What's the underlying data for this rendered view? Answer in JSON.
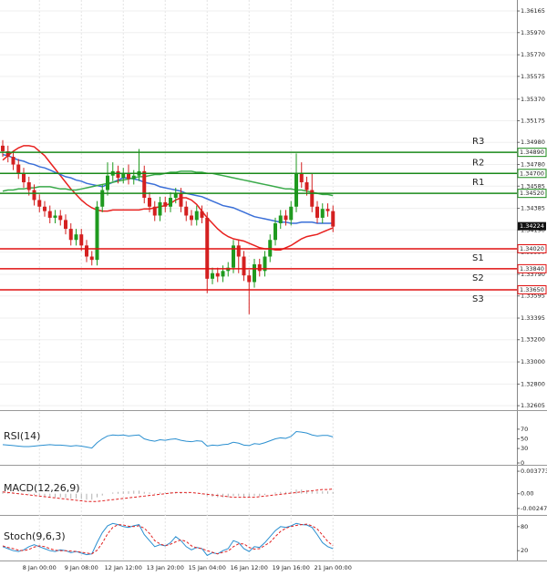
{
  "chart_data": {
    "type": "candlestick",
    "categories": [
      null,
      null,
      null,
      null,
      null,
      null,
      null,
      "8 Jan 00:00",
      null,
      null,
      null,
      null,
      null,
      null,
      null,
      "9 Jan 08:00",
      null,
      null,
      null,
      null,
      null,
      null,
      null,
      "12 Jan 12:00",
      null,
      null,
      null,
      null,
      null,
      null,
      null,
      "13 Jan 20:00",
      null,
      null,
      null,
      null,
      null,
      null,
      null,
      "15 Jan 04:00",
      null,
      null,
      null,
      null,
      null,
      null,
      null,
      "16 Jan 12:00",
      null,
      null,
      null,
      null,
      null,
      null,
      null,
      "19 Jan 16:00",
      null,
      null,
      null,
      null,
      null,
      null,
      null,
      "21 Jan 00:00"
    ],
    "open": [
      1.3495,
      1.349,
      1.3485,
      1.3478,
      1.347,
      1.3462,
      1.3455,
      1.3446,
      1.344,
      1.3436,
      1.343,
      1.3432,
      1.3428,
      1.342,
      1.341,
      1.3415,
      1.3405,
      1.3395,
      1.3392,
      1.344,
      1.3455,
      1.3468,
      1.3472,
      1.3466,
      1.347,
      1.3465,
      1.3468,
      1.3472,
      1.3448,
      1.344,
      1.3432,
      1.3444,
      1.344,
      1.3448,
      1.3452,
      1.344,
      1.3432,
      1.3428,
      1.3436,
      1.343,
      1.3375,
      1.338,
      1.3377,
      1.3382,
      1.3385,
      1.3405,
      1.3395,
      1.3378,
      1.3372,
      1.3388,
      1.3382,
      1.3395,
      1.341,
      1.3425,
      1.3432,
      1.3428,
      1.344,
      1.347,
      1.3462,
      1.3455,
      1.344,
      1.343,
      1.3438,
      1.3436
    ],
    "high": [
      1.35,
      1.3495,
      1.349,
      1.3483,
      1.3475,
      1.3467,
      1.346,
      1.3451,
      1.3445,
      1.3441,
      1.3437,
      1.3437,
      1.3433,
      1.3425,
      1.342,
      1.342,
      1.341,
      1.34,
      1.3445,
      1.346,
      1.348,
      1.348,
      1.3477,
      1.3475,
      1.3478,
      1.3473,
      1.3492,
      1.3477,
      1.3453,
      1.3445,
      1.3449,
      1.3449,
      1.3453,
      1.3457,
      1.3457,
      1.3445,
      1.3437,
      1.3441,
      1.3441,
      1.3435,
      1.3385,
      1.3385,
      1.3387,
      1.339,
      1.341,
      1.341,
      1.34,
      1.3383,
      1.3393,
      1.3393,
      1.34,
      1.3415,
      1.343,
      1.3437,
      1.3437,
      1.3445,
      1.3488,
      1.348,
      1.3467,
      1.347,
      1.3445,
      1.3443,
      1.3443,
      1.3441
    ],
    "low": [
      1.3485,
      1.348,
      1.3473,
      1.3465,
      1.3457,
      1.345,
      1.3441,
      1.3435,
      1.3431,
      1.3425,
      1.3425,
      1.3423,
      1.3415,
      1.3405,
      1.3405,
      1.34,
      1.339,
      1.3387,
      1.3387,
      1.3435,
      1.345,
      1.3463,
      1.3461,
      1.3461,
      1.346,
      1.346,
      1.3463,
      1.3443,
      1.3435,
      1.3427,
      1.3427,
      1.3435,
      1.3435,
      1.3443,
      1.3435,
      1.3427,
      1.3423,
      1.3423,
      1.3425,
      1.3362,
      1.337,
      1.3372,
      1.3372,
      1.3377,
      1.338,
      1.338,
      1.3373,
      1.3343,
      1.3367,
      1.3377,
      1.3377,
      1.339,
      1.3405,
      1.342,
      1.3423,
      1.3423,
      1.3435,
      1.3457,
      1.345,
      1.3435,
      1.3425,
      1.3425,
      1.3431,
      1.3417
    ],
    "close": [
      1.349,
      1.3485,
      1.3478,
      1.347,
      1.3462,
      1.3455,
      1.3446,
      1.344,
      1.3436,
      1.343,
      1.3432,
      1.3428,
      1.342,
      1.341,
      1.3415,
      1.3405,
      1.3395,
      1.3392,
      1.344,
      1.3455,
      1.3468,
      1.3472,
      1.3466,
      1.347,
      1.3465,
      1.3468,
      1.3472,
      1.3448,
      1.344,
      1.3432,
      1.3444,
      1.344,
      1.3448,
      1.3452,
      1.344,
      1.3432,
      1.3428,
      1.3436,
      1.343,
      1.3375,
      1.338,
      1.3377,
      1.3382,
      1.3385,
      1.3405,
      1.3395,
      1.3378,
      1.3372,
      1.3388,
      1.3382,
      1.3395,
      1.341,
      1.3425,
      1.3432,
      1.3428,
      1.344,
      1.347,
      1.3462,
      1.3455,
      1.344,
      1.343,
      1.3438,
      1.3436,
      1.3422
    ],
    "up_color": "#1f9a1f",
    "down_color": "#d42020",
    "series": [
      {
        "color": "#e8201e",
        "values": [
          1.3482,
          1.3486,
          1.349,
          1.3493,
          1.3495,
          1.3495,
          1.3494,
          1.349,
          1.3486,
          1.348,
          1.3474,
          1.3468,
          1.3462,
          1.3456,
          1.3451,
          1.3446,
          1.3442,
          1.3439,
          1.3437,
          1.3436,
          1.3436,
          1.3437,
          1.3437,
          1.3437,
          1.3437,
          1.3437,
          1.3437,
          1.3438,
          1.3438,
          1.3439,
          1.344,
          1.3441,
          1.3443,
          1.3446,
          1.3448,
          1.3448,
          1.3446,
          1.3442,
          1.3436,
          1.343,
          1.3425,
          1.342,
          1.3416,
          1.3413,
          1.3411,
          1.341,
          1.3409,
          1.3407,
          1.3405,
          1.3403,
          1.3402,
          1.3402,
          1.3401,
          1.3401,
          1.3403,
          1.3405,
          1.3408,
          1.3411,
          1.3413,
          1.3414,
          1.3415,
          1.3417,
          1.3419,
          1.3421
        ]
      },
      {
        "color": "#3a6fd8",
        "values": [
          1.3487,
          1.3486,
          1.3484,
          1.3482,
          1.3481,
          1.3479,
          1.3478,
          1.3476,
          1.3475,
          1.3473,
          1.3471,
          1.3469,
          1.3467,
          1.3466,
          1.3464,
          1.3463,
          1.3461,
          1.346,
          1.3459,
          1.3458,
          1.346,
          1.3462,
          1.3464,
          1.3466,
          1.3466,
          1.3465,
          1.3464,
          1.3462,
          1.3461,
          1.346,
          1.3458,
          1.3457,
          1.3456,
          1.3455,
          1.3454,
          1.3452,
          1.3451,
          1.345,
          1.3449,
          1.3447,
          1.3445,
          1.3443,
          1.3441,
          1.344,
          1.3439,
          1.3437,
          1.3435,
          1.3433,
          1.3431,
          1.343,
          1.3429,
          1.3428,
          1.3427,
          1.3426,
          1.3426,
          1.3425,
          1.3425,
          1.3426,
          1.3426,
          1.3426,
          1.3425,
          1.3425,
          1.3425,
          1.3425
        ]
      },
      {
        "color": "#3aaa4a",
        "values": [
          1.3454,
          1.3455,
          1.3455,
          1.3456,
          1.3456,
          1.3457,
          1.3457,
          1.3458,
          1.3458,
          1.3458,
          1.3457,
          1.3456,
          1.3456,
          1.3455,
          1.3455,
          1.3456,
          1.3457,
          1.3458,
          1.3459,
          1.346,
          1.3461,
          1.3462,
          1.3463,
          1.3464,
          1.3465,
          1.3466,
          1.3467,
          1.3467,
          1.3468,
          1.3469,
          1.3469,
          1.347,
          1.3471,
          1.3471,
          1.3472,
          1.3472,
          1.3472,
          1.3471,
          1.3471,
          1.347,
          1.347,
          1.3469,
          1.3468,
          1.3467,
          1.3466,
          1.3465,
          1.3464,
          1.3463,
          1.3462,
          1.3461,
          1.346,
          1.3459,
          1.3458,
          1.3457,
          1.3456,
          1.3456,
          1.3455,
          1.3455,
          1.3454,
          1.3453,
          1.3452,
          1.3451,
          1.3451,
          1.345
        ]
      }
    ],
    "levels": [
      {
        "name": "R3",
        "value": 1.3489,
        "label": "1.34890",
        "color": "#1a8a1a"
      },
      {
        "name": "R2",
        "value": 1.347,
        "label": "1.34700",
        "color": "#1a8a1a"
      },
      {
        "name": "R1",
        "value": 1.3452,
        "label": "1.34520",
        "color": "#1a8a1a"
      },
      {
        "name": "S1",
        "value": 1.3402,
        "label": "1.34020",
        "color": "#e01010"
      },
      {
        "name": "S2",
        "value": 1.3384,
        "label": "1.33840",
        "color": "#e01010"
      },
      {
        "name": "S3",
        "value": 1.3365,
        "label": "1.33650",
        "color": "#e01010"
      }
    ],
    "last_price": 1.34224,
    "ylim": [
      1.32565,
      1.36264
    ],
    "yticks": [
      1.36165,
      {
        "value": 1.3597,
        "label": "1.35970"
      },
      {
        "value": 1.3577,
        "label": "1.35770"
      },
      1.35575,
      {
        "value": 1.3537,
        "label": "1.35370"
      },
      1.35175,
      {
        "value": 1.3498,
        "label": "1.34980"
      },
      {
        "value": 1.3478,
        "label": "1.34780"
      },
      1.34585,
      1.34385,
      {
        "value": 1.3419,
        "label": "1.34190"
      },
      {
        "value": 1.3399,
        "label": "1.33990"
      },
      {
        "value": 1.3379,
        "label": "1.33790"
      },
      1.33595,
      1.33395,
      {
        "value": 1.332,
        "label": "1.33200"
      },
      {
        "value": 1.33,
        "label": "1.33000"
      },
      {
        "value": 1.328,
        "label": "1.32800"
      },
      1.32605
    ],
    "grid": true,
    "indicators": [
      {
        "name": "RSI(14)",
        "ylim": [
          0,
          100
        ],
        "yticks": [
          70,
          50,
          30,
          0
        ],
        "series": [
          {
            "style": "solid",
            "color": "#2a8fd0",
            "values": [
              38,
              37,
              36,
              35,
              34,
              34,
              35,
              36,
              37,
              38,
              37,
              37,
              36,
              35,
              36,
              35,
              33,
              31,
              42,
              50,
              56,
              58,
              57,
              58,
              56,
              57,
              58,
              50,
              47,
              45,
              48,
              47,
              49,
              50,
              47,
              45,
              44,
              46,
              45,
              35,
              37,
              36,
              38,
              39,
              43,
              41,
              37,
              36,
              40,
              39,
              42,
              46,
              50,
              52,
              51,
              55,
              65,
              64,
              62,
              58,
              56,
              57,
              57,
              54
            ]
          }
        ]
      },
      {
        "name": "MACD(12,26,9)",
        "ylim": [
          -0.00326,
          0.00424
        ],
        "yticks": [
          0.003773,
          {
            "value": 0,
            "label": "0.00"
          },
          -0.002476
        ],
        "series": [
          {
            "style": "histogram",
            "color": "#b0b0b0",
            "values": [
              0.0004,
              0.0003,
              0.0002,
              0.0001,
              0,
              -0.0001,
              -0.0002,
              -0.0003,
              -0.0004,
              -0.0005,
              -0.0006,
              -0.0006,
              -0.0007,
              -0.0008,
              -0.0008,
              -0.0009,
              -0.001,
              -0.001,
              -0.0006,
              -0.0003,
              0,
              0.0002,
              0.0003,
              0.0004,
              0.0004,
              0.0005,
              0.0005,
              0.0003,
              0.0002,
              0.0001,
              0.0002,
              0.0002,
              0.0003,
              0.0003,
              0.0002,
              0.0001,
              0,
              0,
              -0.0001,
              -0.0004,
              -0.0005,
              -0.0006,
              -0.0006,
              -0.0006,
              -0.0004,
              -0.0004,
              -0.0005,
              -0.0006,
              -0.0004,
              -0.0004,
              -0.0002,
              0,
              0.0002,
              0.0003,
              0.0003,
              0.0004,
              0.0007,
              0.0007,
              0.0006,
              0.0005,
              0.0004,
              0.0004,
              0.0004,
              0.0003
            ]
          },
          {
            "style": "dashed",
            "color": "#e02020",
            "values": [
              0.0003,
              0.0002,
              0.0001,
              0,
              -0.0001,
              -0.0002,
              -0.0003,
              -0.0004,
              -0.0005,
              -0.0006,
              -0.0007,
              -0.0008,
              -0.0009,
              -0.001,
              -0.0011,
              -0.0012,
              -0.0013,
              -0.0013,
              -0.0013,
              -0.0012,
              -0.0011,
              -0.001,
              -0.0009,
              -0.0008,
              -0.0007,
              -0.0006,
              -0.0005,
              -0.0004,
              -0.0003,
              -0.0002,
              -0.0001,
              0,
              0.0001,
              0.0002,
              0.0002,
              0.0002,
              0.0002,
              0.0001,
              0,
              -0.0001,
              -0.0002,
              -0.0003,
              -0.0004,
              -0.0005,
              -0.0006,
              -0.0006,
              -0.0006,
              -0.0006,
              -0.0006,
              -0.0005,
              -0.0004,
              -0.0003,
              -0.0002,
              -0.0001,
              0,
              0.0001,
              0.0002,
              0.0003,
              0.0004,
              0.0005,
              0.0006,
              0.0007,
              0.0007,
              0.0008
            ]
          }
        ]
      },
      {
        "name": "Stoch(9,6,3)",
        "ylim": [
          0,
          100
        ],
        "yticks": [
          80,
          20
        ],
        "series": [
          {
            "style": "solid",
            "color": "#2a8fd0",
            "values": [
              30,
              25,
              20,
              18,
              22,
              30,
              35,
              30,
              25,
              20,
              18,
              22,
              20,
              15,
              18,
              14,
              10,
              12,
              40,
              65,
              82,
              88,
              85,
              80,
              78,
              82,
              85,
              60,
              45,
              30,
              35,
              32,
              40,
              55,
              45,
              30,
              22,
              28,
              25,
              8,
              15,
              12,
              20,
              25,
              45,
              40,
              25,
              18,
              30,
              28,
              40,
              55,
              70,
              80,
              78,
              82,
              88,
              85,
              84,
              78,
              60,
              40,
              30,
              25
            ]
          },
          {
            "style": "dashed",
            "color": "#e02020",
            "values": [
              32,
              28,
              25,
              21,
              20,
              23,
              29,
              32,
              30,
              25,
              21,
              20,
              20,
              19,
              18,
              16,
              14,
              12,
              21,
              39,
              62,
              78,
              85,
              84,
              81,
              80,
              82,
              76,
              63,
              45,
              37,
              32,
              36,
              42,
              47,
              43,
              32,
              27,
              25,
              20,
              16,
              12,
              16,
              19,
              30,
              37,
              37,
              28,
              24,
              25,
              33,
              41,
              55,
              68,
              76,
              80,
              83,
              85,
              86,
              82,
              74,
              59,
              43,
              32
            ]
          }
        ]
      }
    ]
  }
}
